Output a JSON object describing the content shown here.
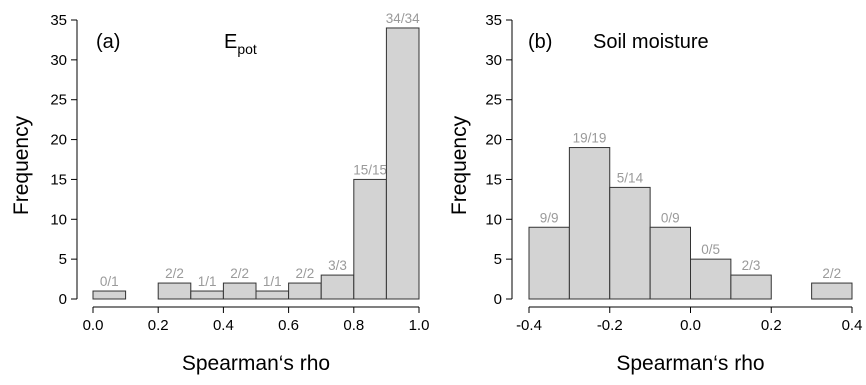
{
  "chart_data": [
    {
      "type": "bar",
      "panel_label": "(a)",
      "title_main": "E",
      "title_sub": "pot",
      "xlabel": "Spearman‘s rho",
      "ylabel": "Frequency",
      "xlim": [
        0.0,
        1.0
      ],
      "ylim": [
        0,
        35
      ],
      "xticks": [
        "0.0",
        "0.2",
        "0.4",
        "0.6",
        "0.8",
        "1.0"
      ],
      "xtick_values": [
        0.0,
        0.2,
        0.4,
        0.6,
        0.8,
        1.0
      ],
      "yticks": [
        "0",
        "5",
        "10",
        "15",
        "20",
        "25",
        "30",
        "35"
      ],
      "ytick_values": [
        0,
        5,
        10,
        15,
        20,
        25,
        30,
        35
      ],
      "bins": [
        {
          "x0": 0.0,
          "x1": 0.1,
          "value": 1,
          "label": "0/1"
        },
        {
          "x0": 0.1,
          "x1": 0.2,
          "value": 0,
          "label": ""
        },
        {
          "x0": 0.2,
          "x1": 0.3,
          "value": 2,
          "label": "2/2"
        },
        {
          "x0": 0.3,
          "x1": 0.4,
          "value": 1,
          "label": "1/1"
        },
        {
          "x0": 0.4,
          "x1": 0.5,
          "value": 2,
          "label": "2/2"
        },
        {
          "x0": 0.5,
          "x1": 0.6,
          "value": 1,
          "label": "1/1"
        },
        {
          "x0": 0.6,
          "x1": 0.7,
          "value": 2,
          "label": "2/2"
        },
        {
          "x0": 0.7,
          "x1": 0.8,
          "value": 3,
          "label": "3/3"
        },
        {
          "x0": 0.8,
          "x1": 0.9,
          "value": 15,
          "label": "15/15"
        },
        {
          "x0": 0.9,
          "x1": 1.0,
          "value": 34,
          "label": "34/34"
        }
      ],
      "bar_color": "#d3d3d3",
      "label_color": "#9a9a9a",
      "grid": false
    },
    {
      "type": "bar",
      "panel_label": "(b)",
      "title_main": "Soil moisture",
      "title_sub": "",
      "xlabel": "Spearman‘s rho",
      "ylabel": "Frequency",
      "xlim": [
        -0.4,
        0.4
      ],
      "ylim": [
        0,
        35
      ],
      "xticks": [
        "-0.4",
        "-0.2",
        "0.0",
        "0.2",
        "0.4"
      ],
      "xtick_values": [
        -0.4,
        -0.2,
        0.0,
        0.2,
        0.4
      ],
      "yticks": [
        "0",
        "5",
        "10",
        "15",
        "20",
        "25",
        "30",
        "35"
      ],
      "ytick_values": [
        0,
        5,
        10,
        15,
        20,
        25,
        30,
        35
      ],
      "bins": [
        {
          "x0": -0.4,
          "x1": -0.3,
          "value": 9,
          "label": "9/9"
        },
        {
          "x0": -0.3,
          "x1": -0.2,
          "value": 19,
          "label": "19/19"
        },
        {
          "x0": -0.2,
          "x1": -0.1,
          "value": 14,
          "label": "5/14"
        },
        {
          "x0": -0.1,
          "x1": 0.0,
          "value": 9,
          "label": "0/9"
        },
        {
          "x0": 0.0,
          "x1": 0.1,
          "value": 5,
          "label": "0/5"
        },
        {
          "x0": 0.1,
          "x1": 0.2,
          "value": 3,
          "label": "2/3"
        },
        {
          "x0": 0.2,
          "x1": 0.3,
          "value": 0,
          "label": ""
        },
        {
          "x0": 0.3,
          "x1": 0.4,
          "value": 2,
          "label": "2/2"
        }
      ],
      "bar_color": "#d3d3d3",
      "label_color": "#9a9a9a",
      "grid": false
    }
  ]
}
